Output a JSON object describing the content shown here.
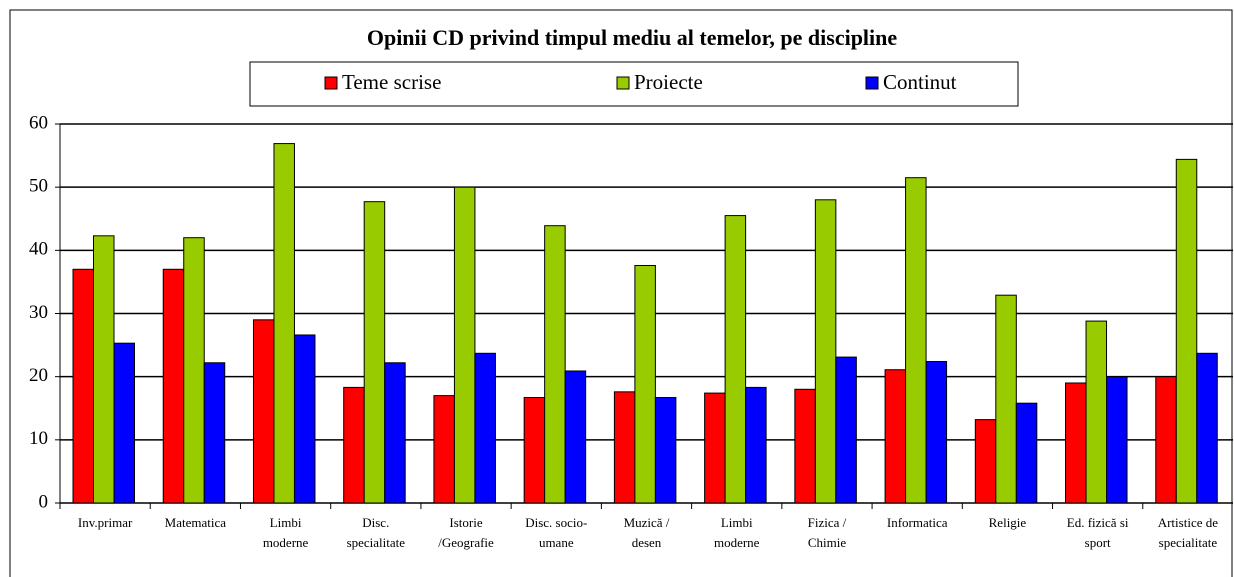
{
  "chart_data": {
    "type": "bar",
    "title": "Opinii CD privind timpul mediu al temelor, pe discipline",
    "categories": [
      "Inv.primar",
      "Matematica",
      "Limbi\nmoderne",
      "Disc.\nspecialitate",
      "Istorie\n/Geografie",
      "Disc. socio-\numane",
      "Muzică /\ndesen",
      "Limbi\nmoderne",
      "Fizica /\nChimie",
      "Informatica",
      "Religie",
      "Ed. fizică si\nsport",
      "Artistice de\nspecialitate"
    ],
    "series": [
      {
        "name": "Teme scrise",
        "color": "#ff0000",
        "values": [
          37,
          37,
          29,
          18.3,
          17,
          16.7,
          17.6,
          17.4,
          18,
          21.1,
          13.2,
          19,
          20
        ]
      },
      {
        "name": "Proiecte",
        "color": "#99cc00",
        "values": [
          42.3,
          42,
          56.9,
          47.7,
          50,
          43.9,
          37.6,
          45.5,
          48,
          51.5,
          32.9,
          28.8,
          54.4
        ]
      },
      {
        "name": "Continut",
        "color": "#0000ff",
        "values": [
          25.3,
          22.2,
          26.6,
          22.2,
          23.7,
          20.9,
          16.7,
          18.3,
          23.1,
          22.4,
          15.8,
          20,
          23.7
        ]
      }
    ],
    "ylim": [
      0,
      60
    ],
    "yticks": [
      0,
      10,
      20,
      30,
      40,
      50,
      60
    ],
    "grid": true
  }
}
